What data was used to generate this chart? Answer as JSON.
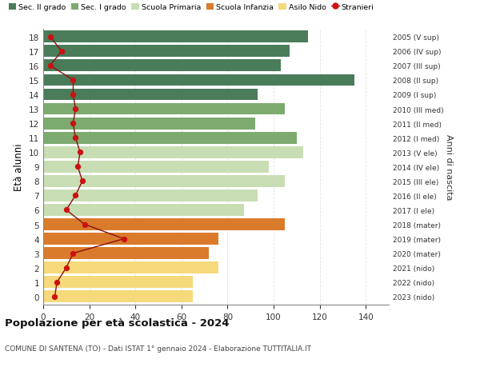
{
  "ages": [
    18,
    17,
    16,
    15,
    14,
    13,
    12,
    11,
    10,
    9,
    8,
    7,
    6,
    5,
    4,
    3,
    2,
    1,
    0
  ],
  "bar_values": [
    115,
    107,
    103,
    135,
    93,
    105,
    92,
    110,
    113,
    98,
    105,
    93,
    87,
    105,
    76,
    72,
    76,
    65,
    65
  ],
  "bar_colors": [
    "#4a7c59",
    "#4a7c59",
    "#4a7c59",
    "#4a7c59",
    "#4a7c59",
    "#7daa6e",
    "#7daa6e",
    "#7daa6e",
    "#c8ddb4",
    "#c8ddb4",
    "#c8ddb4",
    "#c8ddb4",
    "#c8ddb4",
    "#d97b2b",
    "#d97b2b",
    "#d97b2b",
    "#f5d97a",
    "#f5d97a",
    "#f5d97a"
  ],
  "right_labels": [
    "2005 (V sup)",
    "2006 (IV sup)",
    "2007 (III sup)",
    "2008 (II sup)",
    "2009 (I sup)",
    "2010 (III med)",
    "2011 (II med)",
    "2012 (I med)",
    "2013 (V ele)",
    "2014 (IV ele)",
    "2015 (III ele)",
    "2016 (II ele)",
    "2017 (I ele)",
    "2018 (mater)",
    "2019 (mater)",
    "2020 (mater)",
    "2021 (nido)",
    "2022 (nido)",
    "2023 (nido)"
  ],
  "stranieri_values": [
    3,
    8,
    3,
    13,
    13,
    14,
    13,
    14,
    16,
    15,
    17,
    14,
    10,
    18,
    35,
    13,
    10,
    6,
    5
  ],
  "legend_labels": [
    "Sec. II grado",
    "Sec. I grado",
    "Scuola Primaria",
    "Scuola Infanzia",
    "Asilo Nido",
    "Stranieri"
  ],
  "legend_colors": [
    "#4a7c59",
    "#7daa6e",
    "#c8ddb4",
    "#d97b2b",
    "#f5d97a",
    "#b22222"
  ],
  "ylabel_left": "Età alunni",
  "ylabel_right": "Anni di nascita",
  "title": "Popolazione per età scolastica - 2024",
  "subtitle": "COMUNE DI SANTENA (TO) - Dati ISTAT 1° gennaio 2024 - Elaborazione TUTTITALIA.IT",
  "xlim": [
    0,
    150
  ],
  "xticks": [
    0,
    20,
    40,
    60,
    80,
    100,
    120,
    140
  ],
  "grid_color": "#dddddd"
}
